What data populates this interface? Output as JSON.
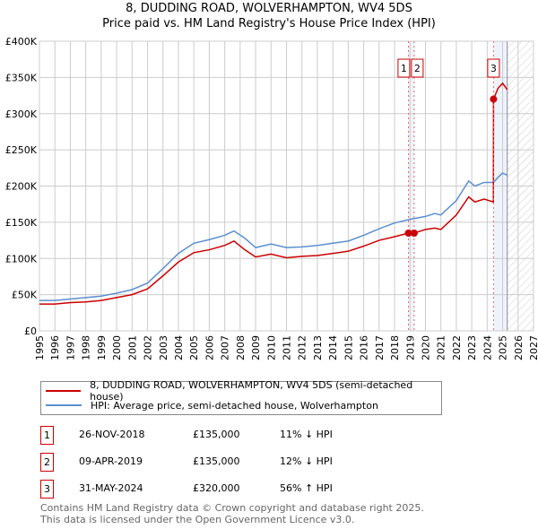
{
  "chart_data": {
    "type": "line",
    "title": "8, DUDDING ROAD, WOLVERHAMPTON, WV4 5DS",
    "subtitle": "Price paid vs. HM Land Registry's House Price Index (HPI)",
    "xlim": [
      1995,
      2027
    ],
    "ylim": [
      0,
      400000
    ],
    "x_ticks": [
      "1995",
      "1996",
      "1997",
      "1998",
      "1999",
      "2000",
      "2001",
      "2002",
      "2003",
      "2004",
      "2005",
      "2006",
      "2007",
      "2008",
      "2009",
      "2010",
      "2011",
      "2012",
      "2013",
      "2014",
      "2015",
      "2016",
      "2017",
      "2018",
      "2019",
      "2020",
      "2021",
      "2022",
      "2023",
      "2024",
      "2025",
      "2026",
      "2027"
    ],
    "y_ticks": [
      {
        "v": 0,
        "l": "£0"
      },
      {
        "v": 50000,
        "l": "£50K"
      },
      {
        "v": 100000,
        "l": "£100K"
      },
      {
        "v": 150000,
        "l": "£150K"
      },
      {
        "v": 200000,
        "l": "£200K"
      },
      {
        "v": 250000,
        "l": "£250K"
      },
      {
        "v": 300000,
        "l": "£300K"
      },
      {
        "v": 350000,
        "l": "£350K"
      },
      {
        "v": 400000,
        "l": "£400K"
      }
    ],
    "series": [
      {
        "name": "8, DUDDING ROAD, WOLVERHAMPTON, WV4 5DS (semi-detached house)",
        "color": "#cc0000",
        "x": [
          1995,
          1996,
          1997,
          1998,
          1999,
          2000,
          2001,
          2002,
          2003,
          2004,
          2005,
          2006,
          2007,
          2007.6,
          2008.3,
          2009,
          2010,
          2011,
          2012,
          2013,
          2014,
          2015,
          2016,
          2017,
          2018,
          2018.9,
          2019.27,
          2020,
          2020.6,
          2021,
          2022,
          2022.8,
          2023.2,
          2023.8,
          2024.4,
          2024.41,
          2024.7,
          2025,
          2025.3
        ],
        "y": [
          37000,
          37000,
          39000,
          40000,
          42000,
          46000,
          50000,
          58000,
          76000,
          95000,
          108000,
          112000,
          118000,
          124000,
          112000,
          102000,
          106000,
          101000,
          103000,
          104000,
          107000,
          110000,
          117000,
          125000,
          130000,
          135000,
          135000,
          140000,
          142000,
          140000,
          160000,
          185000,
          178000,
          182000,
          178000,
          320000,
          335000,
          342000,
          333000
        ]
      },
      {
        "name": "HPI: Average price, semi-detached house, Wolverhampton",
        "color": "#5b8fd0",
        "x": [
          1995,
          1996,
          1997,
          1998,
          1999,
          2000,
          2001,
          2002,
          2003,
          2004,
          2005,
          2006,
          2007,
          2007.6,
          2008.3,
          2009,
          2010,
          2011,
          2012,
          2013,
          2014,
          2015,
          2016,
          2017,
          2018,
          2019,
          2020,
          2020.6,
          2021,
          2022,
          2022.8,
          2023.2,
          2023.8,
          2024.4,
          2024.7,
          2025,
          2025.3
        ],
        "y": [
          42000,
          42000,
          44000,
          46000,
          48000,
          52000,
          57000,
          66000,
          86000,
          107000,
          121000,
          126000,
          132000,
          138000,
          128000,
          115000,
          120000,
          115000,
          116000,
          118000,
          121000,
          124000,
          132000,
          141000,
          149000,
          154000,
          158000,
          162000,
          160000,
          180000,
          207000,
          200000,
          205000,
          205000,
          212000,
          218000,
          215000
        ]
      }
    ],
    "sales": [
      {
        "n": "1",
        "x": 2018.9,
        "y": 135000,
        "date": "26-NOV-2018",
        "price": "£135,000",
        "hpi": "11% ↓ HPI"
      },
      {
        "n": "2",
        "x": 2019.27,
        "y": 135000,
        "date": "09-APR-2019",
        "price": "£135,000",
        "hpi": "12% ↓ HPI"
      },
      {
        "n": "3",
        "x": 2024.41,
        "y": 320000,
        "date": "31-MAY-2024",
        "price": "£320,000",
        "hpi": "56% ↑ HPI"
      }
    ],
    "data_end": 2025.3
  },
  "footer": {
    "line1": "Contains HM Land Registry data © Crown copyright and database right 2025.",
    "line2": "This data is licensed under the Open Government Licence v3.0."
  }
}
